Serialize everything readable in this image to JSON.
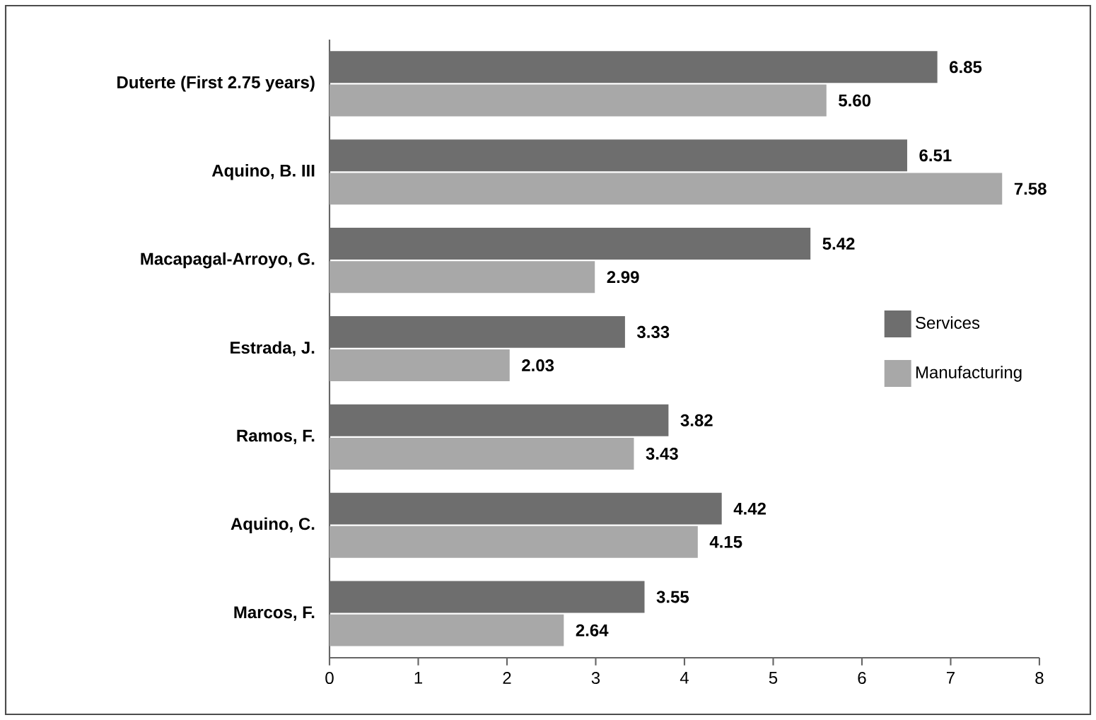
{
  "chart_data": {
    "type": "bar",
    "orientation": "horizontal",
    "categories": [
      "Duterte  (First 2.75 years)",
      "Aquino, B. III",
      "Macapagal-Arroyo, G.",
      "Estrada, J.",
      "Ramos, F.",
      "Aquino, C.",
      "Marcos, F."
    ],
    "series": [
      {
        "name": "Services",
        "color": "#6e6e6e",
        "values": [
          6.85,
          6.51,
          5.42,
          3.33,
          3.82,
          4.42,
          3.55
        ],
        "value_labels": [
          "6.85",
          "6.51",
          "5.42",
          "3.33",
          "3.82",
          "4.42",
          "3.55"
        ]
      },
      {
        "name": "Manufacturing",
        "color": "#a8a8a8",
        "values": [
          5.6,
          7.58,
          2.99,
          2.03,
          3.43,
          4.15,
          2.64
        ],
        "value_labels": [
          "5.60",
          "7.58",
          "2.99",
          "2.03",
          "3.43",
          "4.15",
          "2.64"
        ]
      }
    ],
    "xlim": [
      0,
      8
    ],
    "xticks": [
      0,
      1,
      2,
      3,
      4,
      5,
      6,
      7,
      8
    ],
    "legend": "right",
    "grid": false
  }
}
